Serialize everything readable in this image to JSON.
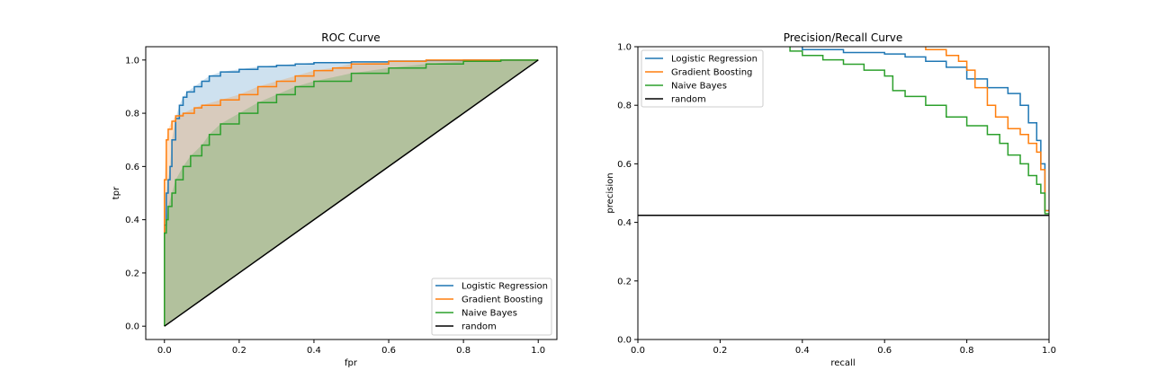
{
  "chart_data": [
    {
      "type": "line",
      "title": "ROC Curve",
      "xlabel": "fpr",
      "ylabel": "tpr",
      "xlim": [
        -0.05,
        1.05
      ],
      "ylim": [
        -0.05,
        1.05
      ],
      "xticks": [
        "0.0",
        "0.2",
        "0.4",
        "0.6",
        "0.8",
        "1.0"
      ],
      "yticks": [
        "0.0",
        "0.2",
        "0.4",
        "0.6",
        "0.8",
        "1.0"
      ],
      "grid": false,
      "legend_position": "lower right",
      "filled": true,
      "series": [
        {
          "name": "Logistic Regression",
          "color": "#1f77b4",
          "x": [
            0,
            0,
            0.005,
            0.01,
            0.015,
            0.02,
            0.03,
            0.04,
            0.05,
            0.06,
            0.08,
            0.1,
            0.12,
            0.15,
            0.2,
            0.25,
            0.3,
            0.35,
            0.4,
            0.5,
            0.6,
            0.7,
            0.8,
            1.0
          ],
          "y": [
            0,
            0.38,
            0.5,
            0.55,
            0.6,
            0.7,
            0.78,
            0.83,
            0.86,
            0.88,
            0.9,
            0.92,
            0.94,
            0.955,
            0.965,
            0.975,
            0.98,
            0.985,
            0.99,
            0.993,
            0.996,
            0.998,
            1.0,
            1.0
          ]
        },
        {
          "name": "Gradient Boosting",
          "color": "#ff7f0e",
          "x": [
            0,
            0,
            0.005,
            0.01,
            0.02,
            0.03,
            0.05,
            0.08,
            0.1,
            0.15,
            0.2,
            0.25,
            0.3,
            0.35,
            0.4,
            0.45,
            0.5,
            0.6,
            0.7,
            0.8,
            1.0
          ],
          "y": [
            0,
            0.55,
            0.7,
            0.74,
            0.77,
            0.79,
            0.8,
            0.82,
            0.83,
            0.85,
            0.87,
            0.9,
            0.92,
            0.94,
            0.96,
            0.97,
            0.985,
            0.995,
            1.0,
            1.0,
            1.0
          ]
        },
        {
          "name": "Naive Bayes",
          "color": "#2ca02c",
          "x": [
            0,
            0,
            0.005,
            0.01,
            0.02,
            0.03,
            0.05,
            0.07,
            0.1,
            0.12,
            0.15,
            0.2,
            0.25,
            0.3,
            0.35,
            0.4,
            0.5,
            0.6,
            0.7,
            0.8,
            0.9,
            1.0
          ],
          "y": [
            0,
            0.35,
            0.4,
            0.45,
            0.5,
            0.55,
            0.6,
            0.64,
            0.68,
            0.72,
            0.76,
            0.8,
            0.84,
            0.87,
            0.9,
            0.92,
            0.95,
            0.97,
            0.985,
            0.995,
            1.0,
            1.0
          ]
        },
        {
          "name": "random",
          "color": "#000000",
          "x": [
            0,
            1
          ],
          "y": [
            0,
            1
          ]
        }
      ]
    },
    {
      "type": "line",
      "title": "Precision/Recall Curve",
      "xlabel": "recall",
      "ylabel": "precision",
      "xlim": [
        0,
        1
      ],
      "ylim": [
        0,
        1
      ],
      "xticks": [
        "0.0",
        "0.2",
        "0.4",
        "0.6",
        "0.8",
        "1.0"
      ],
      "yticks": [
        "0.0",
        "0.2",
        "0.4",
        "0.6",
        "0.8",
        "1.0"
      ],
      "grid": false,
      "legend_position": "upper left",
      "series": [
        {
          "name": "Logistic Regression",
          "color": "#1f77b4",
          "x": [
            0.4,
            0.5,
            0.6,
            0.65,
            0.7,
            0.75,
            0.8,
            0.85,
            0.9,
            0.93,
            0.95,
            0.97,
            0.98,
            0.99,
            1.0
          ],
          "y": [
            1.0,
            0.99,
            0.98,
            0.975,
            0.965,
            0.95,
            0.93,
            0.89,
            0.86,
            0.84,
            0.8,
            0.74,
            0.68,
            0.6,
            0.44
          ]
        },
        {
          "name": "Gradient Boosting",
          "color": "#ff7f0e",
          "x": [
            0.7,
            0.75,
            0.78,
            0.8,
            0.82,
            0.85,
            0.87,
            0.9,
            0.93,
            0.95,
            0.97,
            0.98,
            0.99,
            1.0
          ],
          "y": [
            1.0,
            0.99,
            0.97,
            0.95,
            0.92,
            0.86,
            0.8,
            0.76,
            0.72,
            0.7,
            0.67,
            0.64,
            0.58,
            0.44
          ]
        },
        {
          "name": "Naive Bayes",
          "color": "#2ca02c",
          "x": [
            0.37,
            0.4,
            0.45,
            0.5,
            0.55,
            0.6,
            0.62,
            0.65,
            0.7,
            0.75,
            0.8,
            0.85,
            0.88,
            0.9,
            0.93,
            0.95,
            0.97,
            0.98,
            0.99,
            1.0
          ],
          "y": [
            1.0,
            0.985,
            0.97,
            0.955,
            0.94,
            0.92,
            0.9,
            0.85,
            0.83,
            0.8,
            0.76,
            0.73,
            0.7,
            0.67,
            0.63,
            0.6,
            0.56,
            0.53,
            0.5,
            0.43
          ]
        },
        {
          "name": "random",
          "color": "#000000",
          "x": [
            0,
            1
          ],
          "y": [
            0.424,
            0.424
          ]
        }
      ]
    }
  ]
}
